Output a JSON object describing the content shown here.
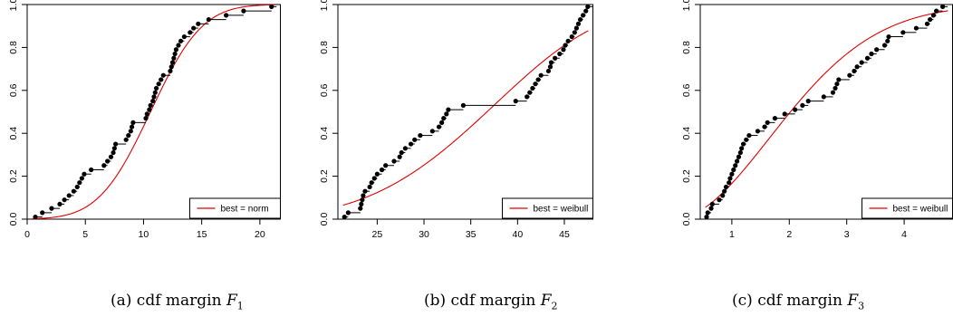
{
  "chart_data": [
    {
      "type": "line",
      "caption": {
        "prefix": "(a) cdf margin ",
        "var": "F",
        "sub": "1"
      },
      "legend": {
        "label": "best = norm",
        "color": "#e00000",
        "placement": "bottom-right"
      },
      "xlim": [
        0,
        21.8
      ],
      "ylim": [
        0,
        1
      ],
      "xticks": [
        0,
        5,
        10,
        15,
        20
      ],
      "yticks": [
        0.0,
        0.2,
        0.4,
        0.6,
        0.8,
        1.0
      ],
      "fit": {
        "dist": "norm",
        "mean": 10.6,
        "sd": 3.5
      },
      "points": [
        [
          0.7,
          0.01
        ],
        [
          1.3,
          0.03
        ],
        [
          2.1,
          0.05
        ],
        [
          2.8,
          0.07
        ],
        [
          3.2,
          0.09
        ],
        [
          3.6,
          0.11
        ],
        [
          4.0,
          0.13
        ],
        [
          4.3,
          0.15
        ],
        [
          4.5,
          0.17
        ],
        [
          4.7,
          0.19
        ],
        [
          4.9,
          0.21
        ],
        [
          5.5,
          0.23
        ],
        [
          6.6,
          0.25
        ],
        [
          6.9,
          0.27
        ],
        [
          7.2,
          0.29
        ],
        [
          7.4,
          0.31
        ],
        [
          7.5,
          0.33
        ],
        [
          7.6,
          0.35
        ],
        [
          8.5,
          0.37
        ],
        [
          8.7,
          0.39
        ],
        [
          8.9,
          0.41
        ],
        [
          9.0,
          0.43
        ],
        [
          9.1,
          0.45
        ],
        [
          10.2,
          0.47
        ],
        [
          10.3,
          0.49
        ],
        [
          10.5,
          0.51
        ],
        [
          10.6,
          0.53
        ],
        [
          10.8,
          0.55
        ],
        [
          10.9,
          0.57
        ],
        [
          11.0,
          0.59
        ],
        [
          11.1,
          0.61
        ],
        [
          11.3,
          0.63
        ],
        [
          11.5,
          0.65
        ],
        [
          11.7,
          0.67
        ],
        [
          12.3,
          0.69
        ],
        [
          12.4,
          0.71
        ],
        [
          12.5,
          0.73
        ],
        [
          12.6,
          0.75
        ],
        [
          12.7,
          0.77
        ],
        [
          12.8,
          0.79
        ],
        [
          13.0,
          0.81
        ],
        [
          13.2,
          0.83
        ],
        [
          13.5,
          0.85
        ],
        [
          14.0,
          0.87
        ],
        [
          14.3,
          0.89
        ],
        [
          14.7,
          0.91
        ],
        [
          15.6,
          0.93
        ],
        [
          17.1,
          0.95
        ],
        [
          18.6,
          0.97
        ],
        [
          21.0,
          0.99
        ]
      ]
    },
    {
      "type": "line",
      "caption": {
        "prefix": "(b) cdf margin ",
        "var": "F",
        "sub": "2"
      },
      "legend": {
        "label": "best = weibull",
        "color": "#e00000",
        "placement": "bottom-right"
      },
      "xlim": [
        20.8,
        48.1
      ],
      "ylim": [
        0,
        1
      ],
      "xticks": [
        25,
        30,
        35,
        40,
        45
      ],
      "yticks": [
        0.0,
        0.2,
        0.4,
        0.6,
        0.8,
        1.0
      ],
      "fit": {
        "dist": "weibull",
        "shape": 4.3,
        "scale": 40.0
      },
      "points": [
        [
          21.5,
          0.01
        ],
        [
          21.9,
          0.03
        ],
        [
          23.2,
          0.05
        ],
        [
          23.3,
          0.07
        ],
        [
          23.4,
          0.09
        ],
        [
          23.5,
          0.11
        ],
        [
          23.7,
          0.13
        ],
        [
          24.2,
          0.15
        ],
        [
          24.4,
          0.17
        ],
        [
          24.7,
          0.19
        ],
        [
          25.0,
          0.21
        ],
        [
          25.5,
          0.23
        ],
        [
          25.9,
          0.25
        ],
        [
          26.8,
          0.27
        ],
        [
          27.4,
          0.29
        ],
        [
          27.6,
          0.31
        ],
        [
          28.0,
          0.33
        ],
        [
          28.6,
          0.35
        ],
        [
          29.0,
          0.37
        ],
        [
          29.6,
          0.39
        ],
        [
          30.9,
          0.41
        ],
        [
          31.6,
          0.43
        ],
        [
          31.9,
          0.45
        ],
        [
          32.1,
          0.47
        ],
        [
          32.4,
          0.49
        ],
        [
          32.6,
          0.51
        ],
        [
          34.2,
          0.53
        ],
        [
          39.8,
          0.55
        ],
        [
          41.0,
          0.57
        ],
        [
          41.3,
          0.59
        ],
        [
          41.6,
          0.61
        ],
        [
          41.9,
          0.63
        ],
        [
          42.2,
          0.65
        ],
        [
          42.5,
          0.67
        ],
        [
          43.3,
          0.69
        ],
        [
          43.5,
          0.71
        ],
        [
          43.6,
          0.73
        ],
        [
          44.0,
          0.75
        ],
        [
          44.5,
          0.77
        ],
        [
          44.9,
          0.79
        ],
        [
          45.1,
          0.81
        ],
        [
          45.4,
          0.83
        ],
        [
          45.8,
          0.85
        ],
        [
          46.1,
          0.87
        ],
        [
          46.3,
          0.89
        ],
        [
          46.5,
          0.91
        ],
        [
          46.7,
          0.93
        ],
        [
          47.0,
          0.95
        ],
        [
          47.3,
          0.97
        ],
        [
          47.5,
          0.99
        ]
      ]
    },
    {
      "type": "line",
      "caption": {
        "prefix": "(c) cdf margin ",
        "var": "F",
        "sub": "3"
      },
      "legend": {
        "label": "best = weibull",
        "color": "#e00000",
        "placement": "bottom-right"
      },
      "xlim": [
        0.45,
        4.85
      ],
      "ylim": [
        0,
        1
      ],
      "xticks": [
        1,
        2,
        3,
        4
      ],
      "yticks": [
        0.0,
        0.2,
        0.4,
        0.6,
        0.8,
        1.0
      ],
      "fit": {
        "dist": "weibull",
        "shape": 1.9,
        "scale": 2.45
      },
      "points": [
        [
          0.56,
          0.01
        ],
        [
          0.58,
          0.03
        ],
        [
          0.64,
          0.05
        ],
        [
          0.66,
          0.07
        ],
        [
          0.78,
          0.09
        ],
        [
          0.84,
          0.11
        ],
        [
          0.87,
          0.13
        ],
        [
          0.9,
          0.15
        ],
        [
          0.95,
          0.17
        ],
        [
          0.97,
          0.19
        ],
        [
          1.0,
          0.21
        ],
        [
          1.03,
          0.23
        ],
        [
          1.06,
          0.25
        ],
        [
          1.09,
          0.27
        ],
        [
          1.12,
          0.29
        ],
        [
          1.15,
          0.31
        ],
        [
          1.17,
          0.33
        ],
        [
          1.2,
          0.35
        ],
        [
          1.25,
          0.37
        ],
        [
          1.3,
          0.39
        ],
        [
          1.45,
          0.41
        ],
        [
          1.57,
          0.43
        ],
        [
          1.62,
          0.45
        ],
        [
          1.75,
          0.47
        ],
        [
          1.92,
          0.49
        ],
        [
          2.1,
          0.51
        ],
        [
          2.23,
          0.53
        ],
        [
          2.33,
          0.55
        ],
        [
          2.6,
          0.57
        ],
        [
          2.76,
          0.59
        ],
        [
          2.8,
          0.61
        ],
        [
          2.83,
          0.63
        ],
        [
          2.86,
          0.65
        ],
        [
          3.05,
          0.67
        ],
        [
          3.13,
          0.69
        ],
        [
          3.18,
          0.71
        ],
        [
          3.26,
          0.73
        ],
        [
          3.36,
          0.75
        ],
        [
          3.43,
          0.77
        ],
        [
          3.52,
          0.79
        ],
        [
          3.66,
          0.81
        ],
        [
          3.71,
          0.83
        ],
        [
          3.73,
          0.85
        ],
        [
          3.98,
          0.87
        ],
        [
          4.21,
          0.89
        ],
        [
          4.4,
          0.91
        ],
        [
          4.45,
          0.93
        ],
        [
          4.51,
          0.95
        ],
        [
          4.56,
          0.97
        ],
        [
          4.67,
          0.99
        ]
      ]
    }
  ]
}
